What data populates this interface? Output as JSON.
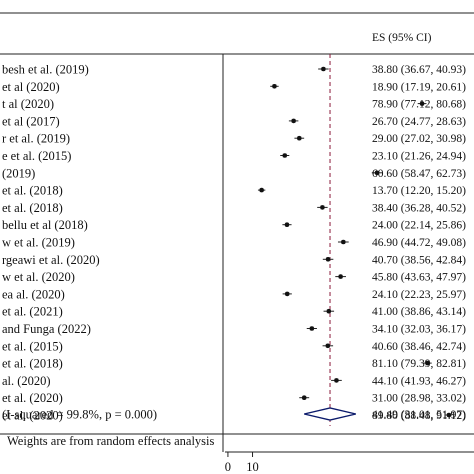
{
  "header": {
    "es_column": "ES (95% CI)"
  },
  "footnote": "Weights are from random effects analysis",
  "chart_data": {
    "type": "forest",
    "x_ticks": [
      "0",
      "10"
    ],
    "x_axis_visible_range": [
      -2,
      100
    ],
    "reference_line": 41.49,
    "studies": [
      {
        "label": "besh et al. (2019)",
        "es": 38.8,
        "lo": 36.67,
        "hi": 40.93,
        "es_text": "38.80 (36.67, 40.93)"
      },
      {
        "label": "et al (2020)",
        "es": 18.9,
        "lo": 17.19,
        "hi": 20.61,
        "es_text": "18.90 (17.19, 20.61)"
      },
      {
        "label": "t al (2020)",
        "es": 78.9,
        "lo": 77.12,
        "hi": 80.68,
        "es_text": "78.90 (77.12, 80.68)"
      },
      {
        "label": "et al (2017)",
        "es": 26.7,
        "lo": 24.77,
        "hi": 28.63,
        "es_text": "26.70 (24.77, 28.63)"
      },
      {
        "label": "r et al. (2019)",
        "es": 29.0,
        "lo": 27.02,
        "hi": 30.98,
        "es_text": "29.00 (27.02, 30.98)"
      },
      {
        "label": "e et al. (2015)",
        "es": 23.1,
        "lo": 21.26,
        "hi": 24.94,
        "es_text": "23.10 (21.26, 24.94)"
      },
      {
        "label": "(2019)",
        "es": 60.6,
        "lo": 58.47,
        "hi": 62.73,
        "es_text": "60.60 (58.47, 62.73)"
      },
      {
        "label": "et al. (2018)",
        "es": 13.7,
        "lo": 12.2,
        "hi": 15.2,
        "es_text": "13.70 (12.20, 15.20)"
      },
      {
        "label": "et al. (2018)",
        "es": 38.4,
        "lo": 36.28,
        "hi": 40.52,
        "es_text": "38.40 (36.28, 40.52)"
      },
      {
        "label": "bellu et al (2018)",
        "es": 24.0,
        "lo": 22.14,
        "hi": 25.86,
        "es_text": "24.00 (22.14, 25.86)"
      },
      {
        "label": "w et al. (2019)",
        "es": 46.9,
        "lo": 44.72,
        "hi": 49.08,
        "es_text": "46.90 (44.72, 49.08)"
      },
      {
        "label": "rgeawi et al. (2020)",
        "es": 40.7,
        "lo": 38.56,
        "hi": 42.84,
        "es_text": "40.70 (38.56, 42.84)"
      },
      {
        "label": "w et al. (2020)",
        "es": 45.8,
        "lo": 43.63,
        "hi": 47.97,
        "es_text": "45.80 (43.63, 47.97)"
      },
      {
        "label": "ea al. (2020)",
        "es": 24.1,
        "lo": 22.23,
        "hi": 25.97,
        "es_text": "24.10 (22.23, 25.97)"
      },
      {
        "label": "et al. (2021)",
        "es": 41.0,
        "lo": 38.86,
        "hi": 43.14,
        "es_text": "41.00 (38.86, 43.14)"
      },
      {
        "label": " and Funga (2022)",
        "es": 34.1,
        "lo": 32.03,
        "hi": 36.17,
        "es_text": "34.10 (32.03, 36.17)"
      },
      {
        "label": "et al. (2015)",
        "es": 40.6,
        "lo": 38.46,
        "hi": 42.74,
        "es_text": "40.60 (38.46, 42.74)"
      },
      {
        "label": "et al. (2018)",
        "es": 81.1,
        "lo": 79.39,
        "hi": 82.81,
        "es_text": "81.10 (79.39, 82.81)"
      },
      {
        "label": "al. (2020)",
        "es": 44.1,
        "lo": 41.93,
        "hi": 46.27,
        "es_text": "44.10 (41.93, 46.27)"
      },
      {
        "label": "et al. (2020)",
        "es": 31.0,
        "lo": 28.98,
        "hi": 33.02,
        "es_text": "31.00 (28.98, 33.02)"
      },
      {
        "label": "et al. (2020)",
        "es": 89.8,
        "lo": 88.48,
        "hi": 91.12,
        "es_text": "89.80 (88.48, 91.12)"
      }
    ],
    "overall": {
      "label": " (I-squared = 99.8%, p = 0.000)",
      "es": 41.49,
      "lo": 31.01,
      "hi": 51.97,
      "es_text": "41.49 (31.01, 51.97)"
    }
  }
}
